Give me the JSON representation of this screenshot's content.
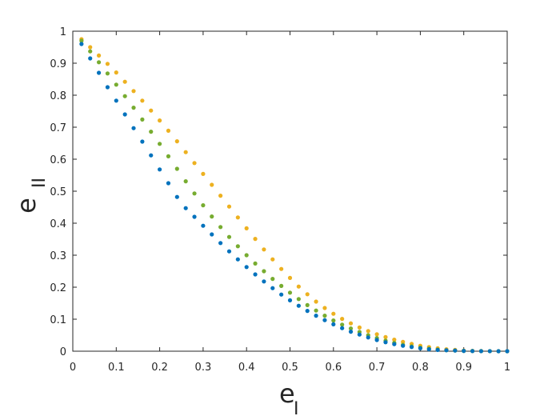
{
  "chart_data": {
    "type": "scatter",
    "title": "",
    "xlabel": {
      "main": "e",
      "sub": "I"
    },
    "ylabel": {
      "main": "e",
      "sub": "II"
    },
    "xlim": [
      0,
      1
    ],
    "ylim": [
      0,
      1
    ],
    "x_ticks": [
      0,
      0.1,
      0.2,
      0.3,
      0.4,
      0.5,
      0.6,
      0.7,
      0.8,
      0.9,
      1
    ],
    "x_tick_labels": [
      "0",
      "0.1",
      "0.2",
      "0.3",
      "0.4",
      "0.5",
      "0.6",
      "0.7",
      "0.8",
      "0.9",
      "1"
    ],
    "y_ticks": [
      0,
      0.1,
      0.2,
      0.3,
      0.4,
      0.5,
      0.6,
      0.7,
      0.8,
      0.9,
      1
    ],
    "y_tick_labels": [
      "0",
      "0.1",
      "0.2",
      "0.3",
      "0.4",
      "0.5",
      "0.6",
      "0.7",
      "0.8",
      "0.9",
      "1"
    ],
    "grid": false,
    "legend": "none",
    "x": [
      0.02,
      0.04,
      0.06,
      0.08,
      0.1,
      0.12,
      0.14,
      0.16,
      0.18,
      0.2,
      0.22,
      0.24,
      0.26,
      0.28,
      0.3,
      0.32,
      0.34,
      0.36,
      0.38,
      0.4,
      0.42,
      0.44,
      0.46,
      0.48,
      0.5,
      0.52,
      0.54,
      0.56,
      0.58,
      0.6,
      0.62,
      0.64,
      0.66,
      0.68,
      0.7,
      0.72,
      0.74,
      0.76,
      0.78,
      0.8,
      0.82,
      0.84,
      0.86,
      0.88,
      0.9,
      0.92,
      0.94,
      0.96,
      0.98,
      1.0
    ],
    "series": [
      {
        "color": "#0072BD",
        "values": [
          0.96,
          0.915,
          0.87,
          0.825,
          0.783,
          0.74,
          0.697,
          0.655,
          0.612,
          0.568,
          0.525,
          0.482,
          0.447,
          0.42,
          0.392,
          0.365,
          0.338,
          0.312,
          0.287,
          0.263,
          0.24,
          0.218,
          0.197,
          0.177,
          0.159,
          0.142,
          0.126,
          0.111,
          0.097,
          0.084,
          0.072,
          0.061,
          0.052,
          0.043,
          0.035,
          0.028,
          0.022,
          0.017,
          0.013,
          0.009,
          0.006,
          0.004,
          0.003,
          0.002,
          0.001,
          0.0005,
          0.0002,
          0.0001,
          0.0,
          0.0
        ]
      },
      {
        "color": "#77AC30",
        "values": [
          0.97,
          0.937,
          0.903,
          0.868,
          0.833,
          0.797,
          0.761,
          0.724,
          0.686,
          0.648,
          0.609,
          0.57,
          0.531,
          0.493,
          0.456,
          0.421,
          0.388,
          0.357,
          0.328,
          0.3,
          0.274,
          0.25,
          0.226,
          0.204,
          0.183,
          0.163,
          0.144,
          0.127,
          0.111,
          0.096,
          0.083,
          0.071,
          0.06,
          0.05,
          0.041,
          0.033,
          0.026,
          0.02,
          0.015,
          0.011,
          0.008,
          0.005,
          0.003,
          0.002,
          0.001,
          0.0006,
          0.0003,
          0.0001,
          0.0,
          0.0
        ]
      },
      {
        "color": "#EDB120",
        "values": [
          0.975,
          0.95,
          0.924,
          0.898,
          0.871,
          0.842,
          0.813,
          0.783,
          0.752,
          0.721,
          0.689,
          0.656,
          0.622,
          0.588,
          0.554,
          0.52,
          0.486,
          0.452,
          0.418,
          0.384,
          0.351,
          0.318,
          0.287,
          0.257,
          0.229,
          0.202,
          0.178,
          0.155,
          0.135,
          0.117,
          0.101,
          0.087,
          0.074,
          0.063,
          0.053,
          0.044,
          0.036,
          0.029,
          0.023,
          0.017,
          0.013,
          0.009,
          0.006,
          0.004,
          0.002,
          0.001,
          0.0005,
          0.0002,
          0.0001,
          0.0
        ]
      }
    ]
  }
}
